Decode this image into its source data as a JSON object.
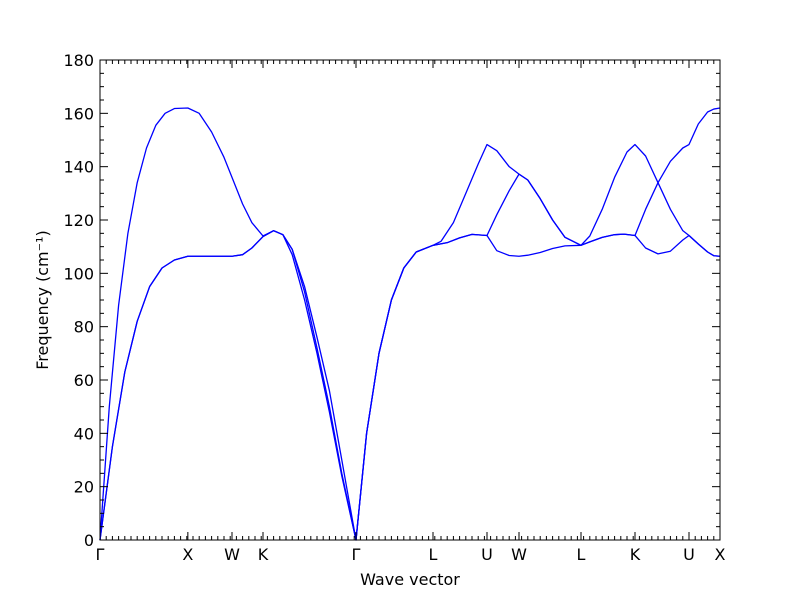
{
  "chart_data": {
    "type": "line",
    "xlabel": "Wave vector",
    "ylabel": "Frequency (cm⁻¹)",
    "ylim": [
      0,
      180
    ],
    "xlim": [
      0,
      1
    ],
    "yticks": [
      0,
      20,
      40,
      60,
      80,
      100,
      120,
      140,
      160,
      180
    ],
    "grid": false,
    "line_color": "#0000ff",
    "kpoints": [
      {
        "label": "Γ",
        "x": 0.0
      },
      {
        "label": "X",
        "x": 0.1417
      },
      {
        "label": "W",
        "x": 0.2129
      },
      {
        "label": "K",
        "x": 0.2629
      },
      {
        "label": "Γ",
        "x": 0.4129
      },
      {
        "label": "L",
        "x": 0.5371
      },
      {
        "label": "U",
        "x": 0.6242
      },
      {
        "label": "W",
        "x": 0.6758
      },
      {
        "label": "L",
        "x": 0.7758
      },
      {
        "label": "K",
        "x": 0.8629
      },
      {
        "label": "U",
        "x": 0.95
      },
      {
        "label": "X",
        "x": 1.0
      }
    ],
    "series": [
      {
        "points": [
          [
            0,
            0
          ],
          [
            0.02,
            35
          ],
          [
            0.04,
            63
          ],
          [
            0.06,
            82
          ],
          [
            0.08,
            95
          ],
          [
            0.1,
            102
          ],
          [
            0.12,
            105
          ],
          [
            0.1417,
            106.4
          ],
          [
            0.16,
            106.4
          ],
          [
            0.18,
            106.4
          ],
          [
            0.2129,
            106.4
          ],
          [
            0.23,
            107
          ],
          [
            0.245,
            109.5
          ],
          [
            0.2629,
            113.8
          ],
          [
            0.28,
            116
          ],
          [
            0.295,
            114.5
          ],
          [
            0.31,
            109
          ],
          [
            0.33,
            93
          ],
          [
            0.35,
            72
          ],
          [
            0.37,
            50
          ],
          [
            0.39,
            25
          ],
          [
            0.4129,
            0
          ],
          [
            0.43,
            40
          ],
          [
            0.45,
            70
          ],
          [
            0.47,
            90
          ],
          [
            0.49,
            102
          ],
          [
            0.51,
            108
          ],
          [
            0.5371,
            110.5
          ],
          [
            0.56,
            111.5
          ],
          [
            0.58,
            113.3
          ],
          [
            0.6,
            114.6
          ],
          [
            0.6242,
            114.2
          ],
          [
            0.64,
            122
          ],
          [
            0.66,
            131
          ],
          [
            0.6758,
            137.2
          ],
          [
            0.69,
            135
          ],
          [
            0.71,
            128
          ],
          [
            0.73,
            120
          ],
          [
            0.75,
            113.5
          ],
          [
            0.7758,
            110.5
          ],
          [
            0.79,
            111.8
          ],
          [
            0.81,
            113.5
          ],
          [
            0.83,
            114.5
          ],
          [
            0.845,
            114.7
          ],
          [
            0.8629,
            114.2
          ],
          [
            0.88,
            124
          ],
          [
            0.9,
            134
          ],
          [
            0.92,
            142
          ],
          [
            0.94,
            147
          ],
          [
            0.95,
            148.3
          ],
          [
            0.965,
            156
          ],
          [
            0.98,
            160.5
          ],
          [
            0.99,
            161.6
          ],
          [
            1.0,
            162.0
          ]
        ]
      },
      {
        "points": [
          [
            0,
            0
          ],
          [
            0.02,
            35
          ],
          [
            0.04,
            63
          ],
          [
            0.06,
            82
          ],
          [
            0.08,
            95
          ],
          [
            0.1,
            102
          ],
          [
            0.12,
            105
          ],
          [
            0.1417,
            106.4
          ],
          [
            0.16,
            106.4
          ],
          [
            0.18,
            106.4
          ],
          [
            0.2129,
            106.4
          ],
          [
            0.23,
            107
          ],
          [
            0.245,
            109.5
          ],
          [
            0.2629,
            113.8
          ],
          [
            0.28,
            116
          ],
          [
            0.295,
            114.5
          ],
          [
            0.31,
            109
          ],
          [
            0.33,
            95
          ],
          [
            0.35,
            76
          ],
          [
            0.37,
            56
          ],
          [
            0.39,
            30
          ],
          [
            0.4129,
            0
          ],
          [
            0.43,
            40
          ],
          [
            0.45,
            70
          ],
          [
            0.47,
            90
          ],
          [
            0.49,
            102
          ],
          [
            0.51,
            108
          ],
          [
            0.5371,
            110.5
          ],
          [
            0.56,
            111.5
          ],
          [
            0.58,
            113.3
          ],
          [
            0.6,
            114.6
          ],
          [
            0.6242,
            114.2
          ],
          [
            0.64,
            108.5
          ],
          [
            0.66,
            106.7
          ],
          [
            0.6758,
            106.4
          ],
          [
            0.69,
            106.8
          ],
          [
            0.71,
            107.8
          ],
          [
            0.73,
            109.3
          ],
          [
            0.75,
            110.3
          ],
          [
            0.7758,
            110.5
          ],
          [
            0.79,
            111.8
          ],
          [
            0.81,
            113.5
          ],
          [
            0.83,
            114.5
          ],
          [
            0.845,
            114.7
          ],
          [
            0.8629,
            114.2
          ],
          [
            0.88,
            109.5
          ],
          [
            0.9,
            107.3
          ],
          [
            0.92,
            108.3
          ],
          [
            0.94,
            112.5
          ],
          [
            0.95,
            114.2
          ],
          [
            0.965,
            111
          ],
          [
            0.98,
            108
          ],
          [
            0.99,
            106.6
          ],
          [
            1.0,
            106.4
          ]
        ]
      },
      {
        "points": [
          [
            0,
            0
          ],
          [
            0.015,
            50
          ],
          [
            0.03,
            88
          ],
          [
            0.045,
            115
          ],
          [
            0.06,
            134
          ],
          [
            0.075,
            147
          ],
          [
            0.09,
            155.5
          ],
          [
            0.105,
            160
          ],
          [
            0.12,
            161.8
          ],
          [
            0.1417,
            162.0
          ],
          [
            0.16,
            160
          ],
          [
            0.18,
            153
          ],
          [
            0.2,
            143.5
          ],
          [
            0.2129,
            136
          ],
          [
            0.23,
            126
          ],
          [
            0.245,
            119
          ],
          [
            0.2629,
            114
          ],
          [
            0.28,
            116
          ],
          [
            0.295,
            114.5
          ],
          [
            0.31,
            107
          ],
          [
            0.33,
            90
          ],
          [
            0.35,
            70
          ],
          [
            0.37,
            48
          ],
          [
            0.39,
            24
          ],
          [
            0.4129,
            0
          ],
          [
            0.43,
            40
          ],
          [
            0.45,
            70
          ],
          [
            0.47,
            90
          ],
          [
            0.49,
            102
          ],
          [
            0.51,
            108
          ],
          [
            0.5371,
            110.5
          ],
          [
            0.55,
            112
          ],
          [
            0.57,
            119
          ],
          [
            0.59,
            130
          ],
          [
            0.61,
            141
          ],
          [
            0.6242,
            148.3
          ],
          [
            0.64,
            146
          ],
          [
            0.66,
            140
          ],
          [
            0.6758,
            137.2
          ],
          [
            0.69,
            135
          ],
          [
            0.71,
            128
          ],
          [
            0.73,
            120
          ],
          [
            0.75,
            113.5
          ],
          [
            0.7758,
            110.5
          ],
          [
            0.79,
            114
          ],
          [
            0.81,
            124
          ],
          [
            0.83,
            136
          ],
          [
            0.85,
            145.5
          ],
          [
            0.8629,
            148.3
          ],
          [
            0.88,
            144
          ],
          [
            0.9,
            134
          ],
          [
            0.92,
            124
          ],
          [
            0.94,
            116
          ],
          [
            0.95,
            114.2
          ],
          [
            0.965,
            111
          ],
          [
            0.98,
            108
          ],
          [
            0.99,
            106.6
          ],
          [
            1.0,
            106.4
          ]
        ]
      }
    ]
  }
}
